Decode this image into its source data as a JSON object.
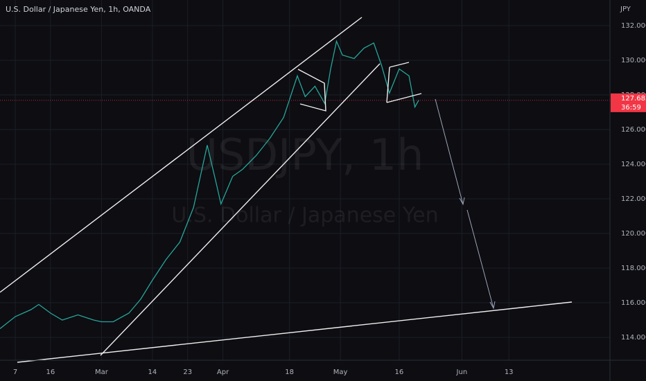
{
  "chart_data": {
    "type": "line",
    "title": "U.S. Dollar / Japanese Yen, 1h, OANDA",
    "currency": "JPY",
    "watermark": "USDJPY, 1h",
    "watermark_subtitle": "U.S. Dollar / Japanese Yen",
    "x": [
      2.1,
      6,
      10,
      12,
      15,
      18,
      22,
      26,
      28,
      31,
      35,
      38,
      41,
      44.5,
      48,
      51.5,
      55,
      57.5,
      58.5,
      61.5,
      64,
      67.5,
      71,
      74.5,
      78,
      80,
      82.5,
      85,
      86.5,
      88,
      89.5,
      92.5,
      95,
      97.5,
      99.5,
      101.5,
      104,
      106.5,
      108,
      109
    ],
    "values": [
      114.5,
      115.2,
      115.6,
      115.9,
      115.4,
      115.0,
      115.3,
      115.0,
      114.9,
      114.9,
      115.4,
      116.2,
      117.3,
      118.5,
      119.5,
      121.5,
      125.1,
      122.7,
      121.7,
      123.3,
      123.7,
      124.5,
      125.5,
      126.7,
      129.1,
      127.9,
      128.5,
      127.5,
      129.5,
      131.1,
      130.3,
      130.1,
      130.7,
      131.0,
      129.7,
      128.1,
      129.5,
      129.1,
      127.3,
      127.7
    ],
    "color": "#26a69a",
    "last_price": 127.685,
    "last_price_color": "#f23645",
    "countdown": "36:59",
    "xlim": [
      2.1,
      157.8
    ],
    "ylim": [
      112.68,
      133.48
    ],
    "xticks": [
      {
        "value": 6,
        "label": "7"
      },
      {
        "value": 15,
        "label": "16"
      },
      {
        "value": 28,
        "label": "Mar"
      },
      {
        "value": 41,
        "label": "14"
      },
      {
        "value": 50,
        "label": "23"
      },
      {
        "value": 59,
        "label": "Apr"
      },
      {
        "value": 76,
        "label": "18"
      },
      {
        "value": 89,
        "label": "May"
      },
      {
        "value": 104,
        "label": "16"
      },
      {
        "value": 120,
        "label": "Jun"
      },
      {
        "value": 132,
        "label": "13"
      }
    ],
    "yticks": [
      {
        "value": 114,
        "label": "114.000"
      },
      {
        "value": 116,
        "label": "116.000"
      },
      {
        "value": 118,
        "label": "118.000"
      },
      {
        "value": 120,
        "label": "120.000"
      },
      {
        "value": 122,
        "label": "122.000"
      },
      {
        "value": 124,
        "label": "124.000"
      },
      {
        "value": 126,
        "label": "126.000"
      },
      {
        "value": 128,
        "label": "128.000"
      },
      {
        "value": 130,
        "label": "130.000"
      },
      {
        "value": 132,
        "label": "132.000"
      }
    ],
    "grid": true
  }
}
